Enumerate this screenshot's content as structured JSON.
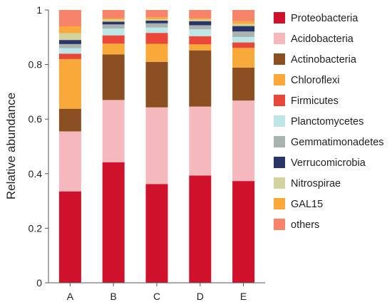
{
  "chart_data": {
    "type": "bar",
    "stacked": true,
    "title": "",
    "xlabel": "",
    "ylabel": "Relative abundance",
    "ylim": [
      0,
      1
    ],
    "yticks": [
      "0",
      "0.2",
      "0.4",
      "0.6",
      "0.8",
      "1"
    ],
    "categories": [
      "A",
      "B",
      "C",
      "D",
      "E"
    ],
    "legend_position": "right",
    "series": [
      {
        "name": "Proteobacteria",
        "color": "#d0112b",
        "values": [
          0.335,
          0.442,
          0.362,
          0.393,
          0.373
        ]
      },
      {
        "name": "Acidobacteria",
        "color": "#f4b8bd",
        "values": [
          0.22,
          0.228,
          0.281,
          0.253,
          0.295
        ]
      },
      {
        "name": "Actinobacteria",
        "color": "#8b4f22",
        "values": [
          0.083,
          0.167,
          0.167,
          0.206,
          0.121
        ]
      },
      {
        "name": "Chloroflexi",
        "color": "#f9a93a",
        "values": [
          0.182,
          0.04,
          0.066,
          0.022,
          0.072
        ]
      },
      {
        "name": "Firmicutes",
        "color": "#e8473a",
        "values": [
          0.02,
          0.03,
          0.04,
          0.03,
          0.02
        ]
      },
      {
        "name": "Planctomycetes",
        "color": "#bfe6e6",
        "values": [
          0.02,
          0.025,
          0.02,
          0.025,
          0.02
        ]
      },
      {
        "name": "Gemmatimonadetes",
        "color": "#a9b4b0",
        "values": [
          0.015,
          0.015,
          0.015,
          0.015,
          0.02
        ]
      },
      {
        "name": "Verrucomicrobia",
        "color": "#2a3466",
        "values": [
          0.015,
          0.01,
          0.01,
          0.015,
          0.02
        ]
      },
      {
        "name": "Nitrospirae",
        "color": "#d3d3a0",
        "values": [
          0.025,
          0.008,
          0.005,
          0.006,
          0.008
        ]
      },
      {
        "name": "GAL15",
        "color": "#f9a93a",
        "values": [
          0.025,
          0.005,
          0.007,
          0.005,
          0.01
        ]
      },
      {
        "name": "others",
        "color": "#f7836a",
        "values": [
          0.06,
          0.03,
          0.027,
          0.03,
          0.041
        ]
      }
    ]
  }
}
